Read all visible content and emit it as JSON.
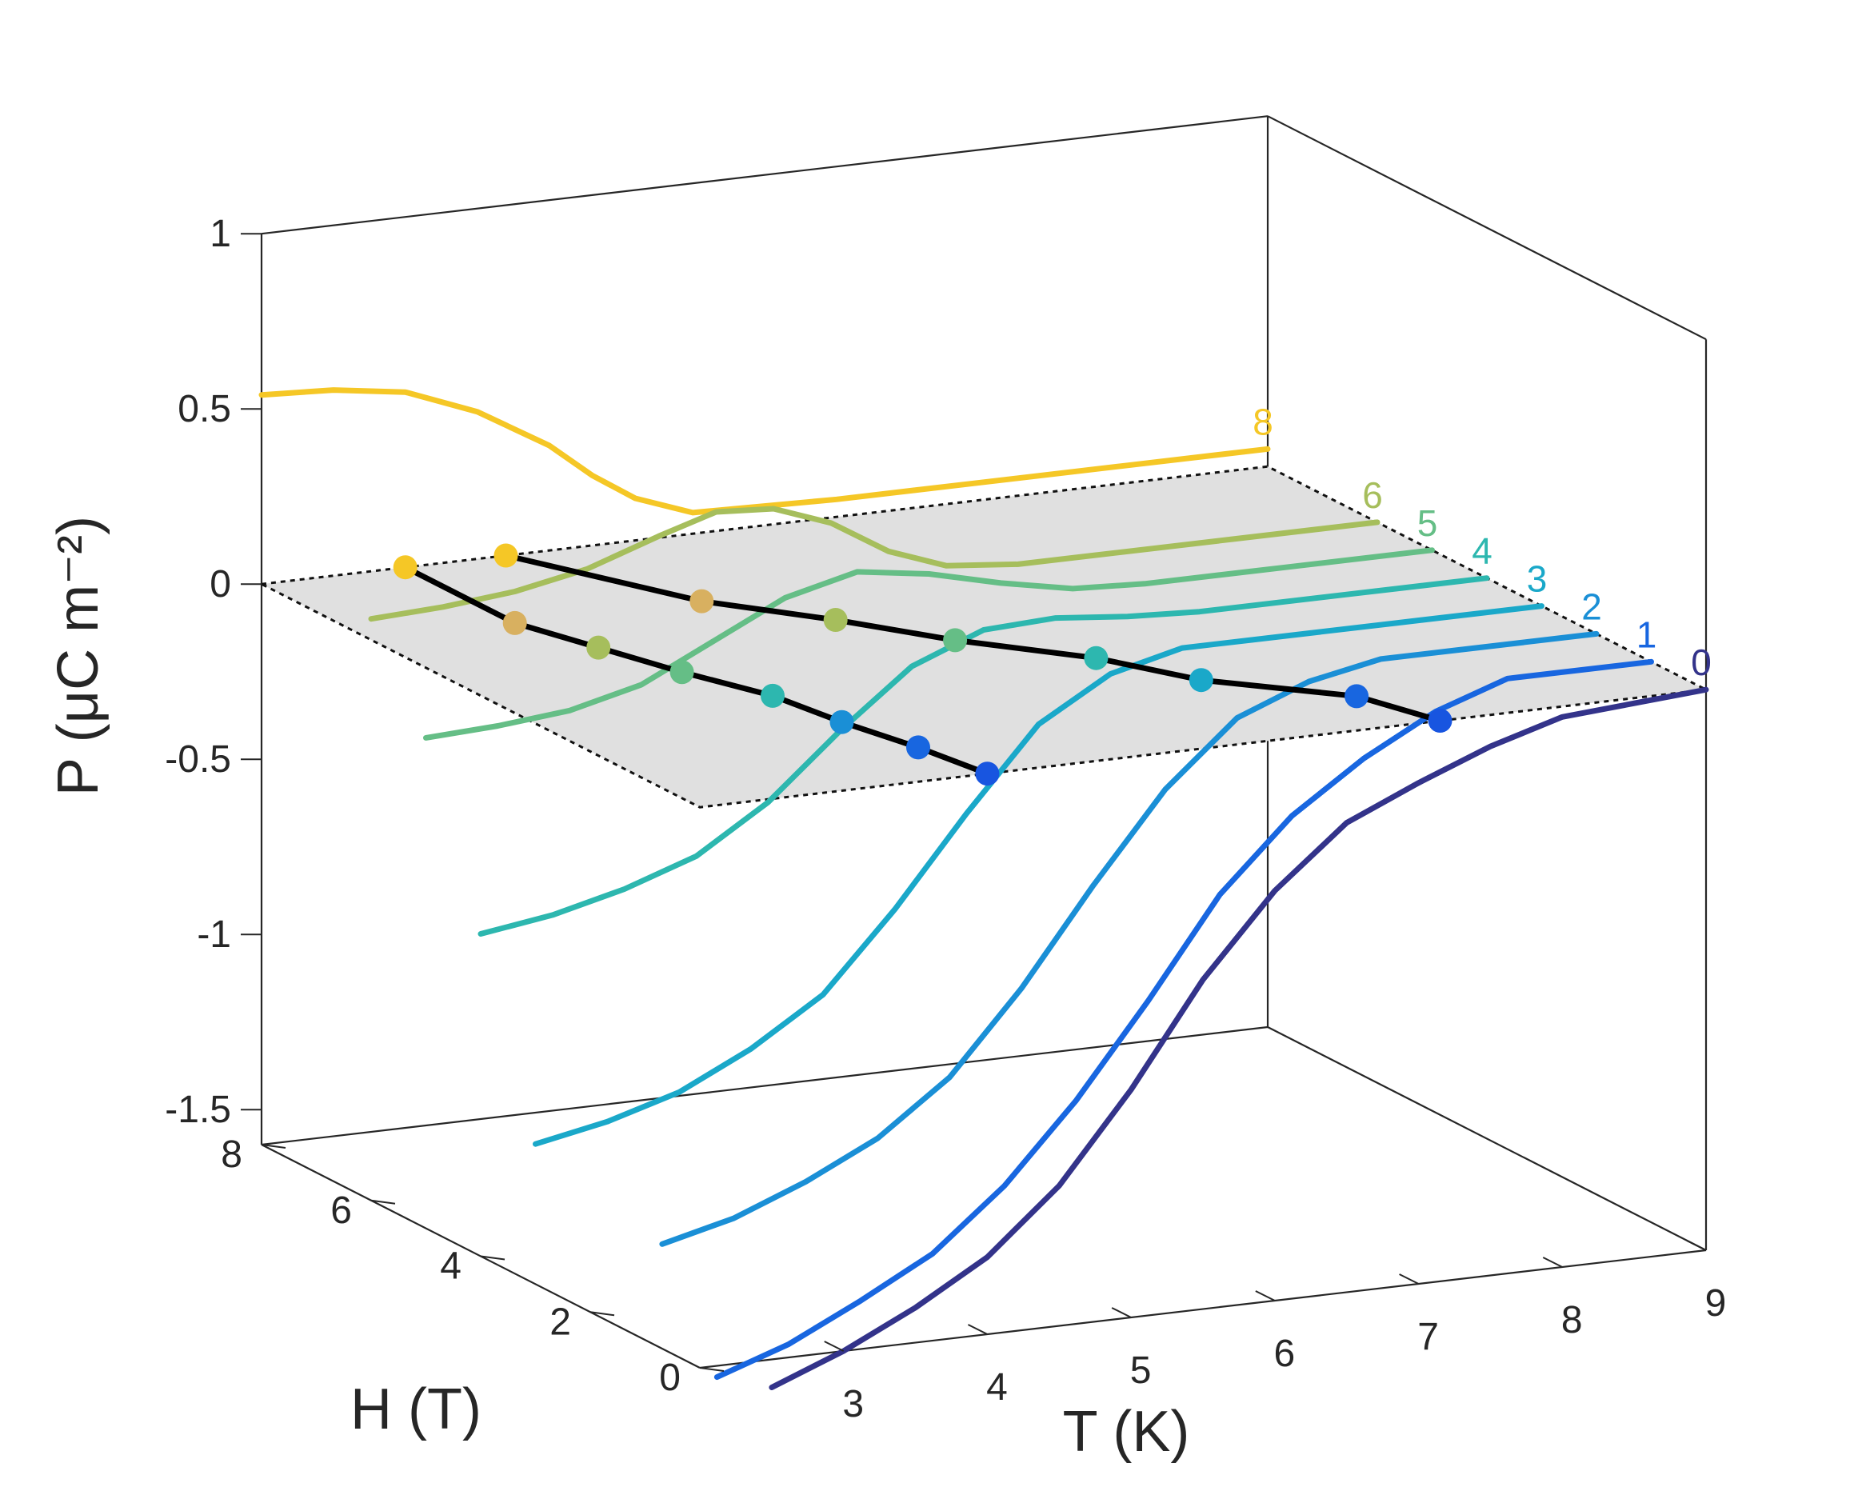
{
  "chart_data": {
    "type": "line3d",
    "title": "",
    "xlabel": "T (K)",
    "ylabel": "H (T)",
    "zlabel": "P (μC m⁻²)",
    "xlim": [
      2,
      9
    ],
    "ylim": [
      0,
      8
    ],
    "zlim": [
      -1.6,
      1
    ],
    "x_ticks": [
      "3",
      "4",
      "5",
      "6",
      "7",
      "8",
      "9"
    ],
    "y_ticks": [
      "0",
      "2",
      "4",
      "6",
      "8"
    ],
    "z_ticks": [
      "1",
      "0.5",
      "0",
      "-0.5",
      "-1",
      "-1.5"
    ],
    "grid": false,
    "reference_plane": {
      "P": 0,
      "style": "gray dotted outline"
    },
    "series": [
      {
        "name": "8",
        "H": 8,
        "color": "#F5C726",
        "T": [
          2,
          2.5,
          3,
          3.5,
          4,
          4.3,
          4.6,
          5,
          6,
          7,
          8,
          9
        ],
        "P": [
          0.54,
          0.53,
          0.5,
          0.42,
          0.3,
          0.2,
          0.12,
          0.06,
          0.05,
          0.05,
          0.05,
          0.05
        ]
      },
      {
        "name": "6",
        "H": 6,
        "color": "#A6BE5C",
        "T": [
          2,
          2.5,
          3,
          3.5,
          4,
          4.4,
          4.8,
          5.2,
          5.6,
          6,
          6.5,
          7,
          8,
          9
        ],
        "P": [
          0.06,
          0.07,
          0.09,
          0.13,
          0.2,
          0.25,
          0.24,
          0.18,
          0.08,
          0.02,
          0.0,
          0.0,
          0.0,
          0.0
        ]
      },
      {
        "name": "5",
        "H": 5,
        "color": "#65BE86",
        "T": [
          2,
          2.5,
          3,
          3.5,
          4,
          4.5,
          5,
          5.5,
          6,
          6.5,
          7,
          8,
          9
        ],
        "P": [
          -0.2,
          -0.19,
          -0.17,
          -0.12,
          -0.02,
          0.08,
          0.13,
          0.1,
          0.05,
          0.01,
          0.0,
          0.0,
          0.0
        ]
      },
      {
        "name": "4",
        "H": 4,
        "color": "#2DB7AF",
        "T": [
          2,
          2.5,
          3,
          3.5,
          4,
          4.5,
          5,
          5.5,
          6,
          6.5,
          7,
          8,
          9
        ],
        "P": [
          -0.68,
          -0.65,
          -0.6,
          -0.53,
          -0.4,
          -0.22,
          -0.06,
          0.02,
          0.03,
          0.01,
          0.0,
          0.0,
          0.0
        ]
      },
      {
        "name": "3",
        "H": 3,
        "color": "#1AA8C9",
        "T": [
          2,
          2.5,
          3,
          3.5,
          4,
          4.5,
          5,
          5.5,
          6,
          6.5,
          7,
          8,
          9
        ],
        "P": [
          -1.2,
          -1.16,
          -1.1,
          -1.0,
          -0.87,
          -0.65,
          -0.4,
          -0.17,
          -0.05,
          0.0,
          0.0,
          0.0,
          0.0
        ]
      },
      {
        "name": "2",
        "H": 2,
        "color": "#1A8FD6",
        "T": [
          2.5,
          3,
          3.5,
          4,
          4.5,
          5,
          5.5,
          6,
          6.5,
          7,
          7.5,
          8,
          9
        ],
        "P": [
          -1.43,
          -1.38,
          -1.3,
          -1.2,
          -1.05,
          -0.82,
          -0.55,
          -0.3,
          -0.12,
          -0.04,
          0.0,
          0.0,
          0.0
        ]
      },
      {
        "name": "1",
        "H": 1,
        "color": "#1866E0",
        "T": [
          2.5,
          3,
          3.5,
          4,
          4.5,
          5,
          5.5,
          6,
          6.5,
          7,
          7.5,
          8,
          9
        ],
        "P": [
          -1.73,
          -1.66,
          -1.56,
          -1.45,
          -1.28,
          -1.06,
          -0.8,
          -0.52,
          -0.32,
          -0.18,
          -0.07,
          0.0,
          0.0
        ]
      },
      {
        "name": "0",
        "H": 0,
        "color": "#33338A",
        "T": [
          2.5,
          3,
          3.5,
          4,
          4.5,
          5,
          5.5,
          6,
          6.5,
          7,
          7.5,
          8,
          9
        ],
        "P": [
          -1.68,
          -1.6,
          -1.5,
          -1.38,
          -1.2,
          -0.95,
          -0.66,
          -0.43,
          -0.26,
          -0.17,
          -0.09,
          -0.03,
          0.0
        ]
      }
    ],
    "transition_lines": [
      {
        "name": "transition-low-T",
        "points": [
          {
            "T": 3.0,
            "H": 8
          },
          {
            "T": 3.0,
            "H": 6
          },
          {
            "T": 3.2,
            "H": 5
          },
          {
            "T": 3.4,
            "H": 4
          },
          {
            "T": 3.65,
            "H": 3
          },
          {
            "T": 3.75,
            "H": 2
          },
          {
            "T": 3.9,
            "H": 1
          },
          {
            "T": 4.0,
            "H": 0
          }
        ],
        "point_colors": [
          "#F5C726",
          "#D8B060",
          "#A6BE5C",
          "#65BE86",
          "#2DB7AF",
          "#1A8FD6",
          "#1866E0",
          "#1855E0"
        ]
      },
      {
        "name": "transition-high-T",
        "points": [
          {
            "T": 3.7,
            "H": 8
          },
          {
            "T": 4.3,
            "H": 6
          },
          {
            "T": 4.85,
            "H": 5
          },
          {
            "T": 5.3,
            "H": 4
          },
          {
            "T": 5.9,
            "H": 3
          },
          {
            "T": 6.25,
            "H": 2
          },
          {
            "T": 6.95,
            "H": 1
          },
          {
            "T": 7.15,
            "H": 0
          }
        ],
        "point_colors": [
          "#F5C726",
          "#D8B060",
          "#A6BE5C",
          "#65BE86",
          "#2DB7AF",
          "#1AA8C9",
          "#1866E0",
          "#1855E0"
        ]
      }
    ]
  }
}
